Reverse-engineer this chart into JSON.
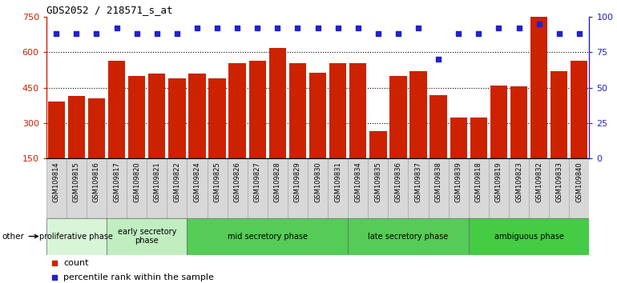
{
  "title": "GDS2052 / 218571_s_at",
  "samples": [
    "GSM109814",
    "GSM109815",
    "GSM109816",
    "GSM109817",
    "GSM109820",
    "GSM109821",
    "GSM109822",
    "GSM109824",
    "GSM109825",
    "GSM109826",
    "GSM109827",
    "GSM109828",
    "GSM109829",
    "GSM109830",
    "GSM109831",
    "GSM109834",
    "GSM109835",
    "GSM109836",
    "GSM109837",
    "GSM109838",
    "GSM109839",
    "GSM109818",
    "GSM109819",
    "GSM109823",
    "GSM109832",
    "GSM109833",
    "GSM109840"
  ],
  "counts": [
    390,
    415,
    405,
    565,
    500,
    510,
    490,
    510,
    490,
    555,
    565,
    620,
    555,
    515,
    555,
    555,
    265,
    500,
    520,
    420,
    325,
    325,
    460,
    455,
    755,
    520,
    565
  ],
  "percentile_ranks": [
    88,
    88,
    88,
    92,
    88,
    88,
    88,
    92,
    92,
    92,
    92,
    92,
    92,
    92,
    92,
    92,
    88,
    88,
    92,
    70,
    88,
    88,
    92,
    92,
    95,
    88,
    88
  ],
  "phases": [
    {
      "label": "proliferative phase",
      "start": 0,
      "end": 3,
      "color": "#d4f5d4"
    },
    {
      "label": "early secretory\nphase",
      "start": 3,
      "end": 7,
      "color": "#c0f0c0"
    },
    {
      "label": "mid secretory phase",
      "start": 7,
      "end": 15,
      "color": "#66dd66"
    },
    {
      "label": "late secretory phase",
      "start": 15,
      "end": 21,
      "color": "#66dd66"
    },
    {
      "label": "ambiguous phase",
      "start": 21,
      "end": 27,
      "color": "#44cc44"
    }
  ],
  "bar_color": "#cc2200",
  "dot_color": "#2222cc",
  "ylim_left": [
    150,
    750
  ],
  "yticks_left": [
    150,
    300,
    450,
    600,
    750
  ],
  "grid_yticks": [
    300,
    450,
    600
  ],
  "ylim_right": [
    0,
    100
  ],
  "yticks_right": [
    0,
    25,
    50,
    75,
    100
  ],
  "ylabel_left_color": "#cc2200",
  "ylabel_right_color": "#2222cc",
  "background_color": "#ffffff",
  "tick_bg_color": "#d8d8d8",
  "legend_count_color": "#cc2200",
  "legend_pct_color": "#2222cc"
}
